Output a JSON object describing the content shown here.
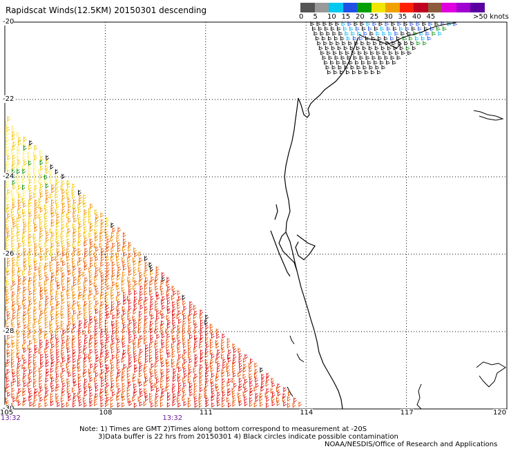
{
  "title": "Rapidscat Winds(12.5KM) 20150301 descending",
  "legend": {
    "bins": [
      {
        "label": "0",
        "color": "#555555"
      },
      {
        "label": "5",
        "color": "#999999"
      },
      {
        "label": "10",
        "color": "#00c8f0"
      },
      {
        "label": "15",
        "color": "#1e50e6"
      },
      {
        "label": "20",
        "color": "#00a000"
      },
      {
        "label": "25",
        "color": "#f0e600"
      },
      {
        "label": "30",
        "color": "#f0a000"
      },
      {
        "label": "35",
        "color": "#ff2000"
      },
      {
        "label": "40",
        "color": "#c00020"
      },
      {
        "label": "45",
        "color": "#8c5a3c"
      },
      {
        "label": "",
        "color": "#e000e0"
      },
      {
        "label": "",
        "color": "#a000d0"
      },
      {
        "label": "",
        "color": "#5a00a0"
      }
    ],
    "unit_label": ">50 knots"
  },
  "map": {
    "lon_range": [
      105,
      120
    ],
    "lat_range": [
      -30,
      -20
    ],
    "y_ticks": [
      "-20",
      "-22",
      "-24",
      "-26",
      "-28",
      "-30"
    ],
    "x_ticks": [
      "105",
      "108",
      "111",
      "114",
      "117",
      "120"
    ],
    "time_labels": [
      {
        "text": "13:32",
        "lon": 105
      },
      {
        "text": "13:32",
        "lon": 110
      }
    ],
    "swath_edge": [
      [
        105,
        -22.5
      ],
      [
        111.5,
        -28.1
      ],
      [
        114,
        -30
      ]
    ],
    "colors": {
      "light_yellow": "#ffec60",
      "yellow": "#f0c800",
      "orange": "#f08c00",
      "red_orange": "#e85000",
      "red": "#e01010",
      "green": "#008c00",
      "black": "#000000",
      "light_blue": "#00b4f0",
      "blue": "#1e50e6",
      "coastline": "#000000",
      "grid": "#000000"
    }
  },
  "notes": [
    "Note: 1) Times are GMT 2)Times along bottom correspond to measurement at -20S",
    "3)Data buffer is 22 hrs from 20150301 4) Black circles indicate possible contamination",
    "NOAA/NESDIS/Office of Research and Applications"
  ]
}
